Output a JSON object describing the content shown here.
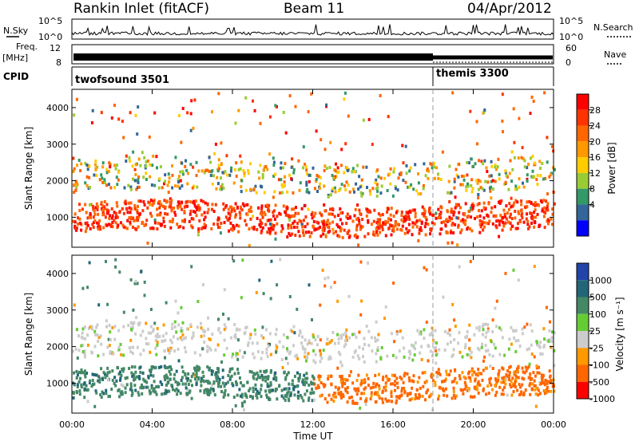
{
  "header": {
    "title": "Rankin Inlet (fitACF)",
    "beam": "Beam 11",
    "date": "04/Apr/2012"
  },
  "status_panels": {
    "nsky_label": "N.Sky",
    "nsearch_label": "N.Search",
    "noise_ticks": [
      "10^5",
      "10^0"
    ],
    "freq_label_top": "Freq.",
    "freq_label_bottom": "[MHz]",
    "freq_ticks": [
      "12",
      "8"
    ],
    "nave_label": "Nave",
    "nave_ticks": [
      "60",
      "0"
    ],
    "cpid_label": "CPID",
    "cpid_segments": [
      {
        "name": "twofsound 3501",
        "start_hour": 0,
        "end_hour": 18
      },
      {
        "name": "themis 3300",
        "start_hour": 18,
        "end_hour": 24
      }
    ]
  },
  "chart_data": [
    {
      "type": "heatmap",
      "title": "",
      "xlabel": "Time UT",
      "ylabel": "Slant Range [km]",
      "x_ticks": [
        "00:00",
        "04:00",
        "08:00",
        "12:00",
        "16:00",
        "20:00",
        "00:00"
      ],
      "x_range_hours": [
        0,
        24
      ],
      "y_ticks": [
        1000,
        2000,
        3000,
        4000
      ],
      "ylim": [
        180,
        4500
      ],
      "colorbar": {
        "label": "Power [dB]",
        "ticks": [
          "28",
          "24",
          "20",
          "16",
          "12",
          "8",
          "4"
        ],
        "colors": [
          "#ff0000",
          "#ff3300",
          "#ff6600",
          "#ff9900",
          "#ffcc00",
          "#99cc33",
          "#339966",
          "#336699",
          "#0000ff"
        ]
      },
      "bands": [
        {
          "name": "main_echo",
          "range_km": [
            600,
            1400
          ],
          "dominant_level": "24-28 dB"
        },
        {
          "name": "second_hop",
          "range_km": [
            1700,
            2600
          ],
          "dominant_level": "8-20 dB"
        }
      ]
    },
    {
      "type": "heatmap",
      "title": "",
      "xlabel": "Time UT",
      "ylabel": "Slant Range [km]",
      "x_ticks": [
        "00:00",
        "04:00",
        "08:00",
        "12:00",
        "16:00",
        "20:00",
        "00:00"
      ],
      "x_range_hours": [
        0,
        24
      ],
      "y_ticks": [
        1000,
        2000,
        3000,
        4000
      ],
      "ylim": [
        180,
        4500
      ],
      "colorbar": {
        "label": "Velocity [m s⁻¹]",
        "ticks": [
          "1000",
          "500",
          "100",
          "25",
          "-25",
          "-100",
          "-500",
          "-1000"
        ],
        "colors": [
          "#2244aa",
          "#226677",
          "#448866",
          "#66cc33",
          "#cccccc",
          "#ff9900",
          "#ff6600",
          "#ff0000"
        ]
      },
      "bands": [
        {
          "name": "main_echo",
          "range_km": [
            600,
            1400
          ],
          "dominant_level": "positive 100-500 before 12:00, negative -100 to -500 after 12:00"
        },
        {
          "name": "second_hop",
          "range_km": [
            1700,
            2600
          ],
          "dominant_level": "mixed, ground scatter (grey)"
        }
      ]
    }
  ]
}
